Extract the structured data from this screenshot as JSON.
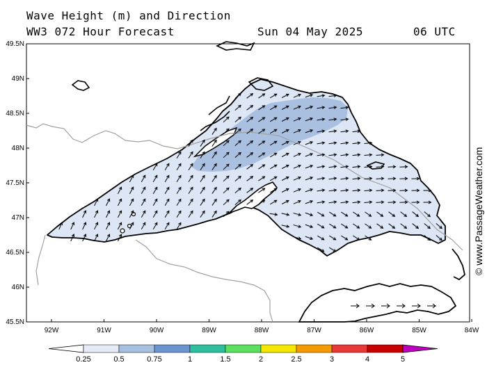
{
  "header": {
    "line1": "Wave Height (m) and Direction",
    "line2": "WW3 072 Hour Forecast",
    "date": "Sun 04 May 2025",
    "time": "06 UTC"
  },
  "axes": {
    "lat_labels": [
      "49.5N",
      "49N",
      "48.5N",
      "48N",
      "47.5N",
      "47N",
      "46.5N",
      "46N",
      "45.5N"
    ],
    "lon_labels": [
      "92W",
      "91W",
      "90W",
      "89W",
      "88W",
      "87W",
      "86W",
      "85W",
      "84W"
    ]
  },
  "colorbar": {
    "labels": [
      "0.25",
      "0.5",
      "0.75",
      "1",
      "1.5",
      "2",
      "2.5",
      "3",
      "4",
      "5"
    ],
    "colors": [
      "#ffffff",
      "#e4ebf6",
      "#a8c0e0",
      "#6b95cf",
      "#2fbf9f",
      "#5ddf5f",
      "#f5e800",
      "#f59a00",
      "#e83838",
      "#c80000",
      "#c000c0"
    ]
  },
  "field_colors": {
    "land": "#ffffff",
    "water_low": "#dde6f4",
    "water_mid": "#a9c0e1",
    "coast": "#000000",
    "border": "#a0a0a0",
    "arrow": "#000000"
  },
  "credit": "© www.PassageWeather.com"
}
